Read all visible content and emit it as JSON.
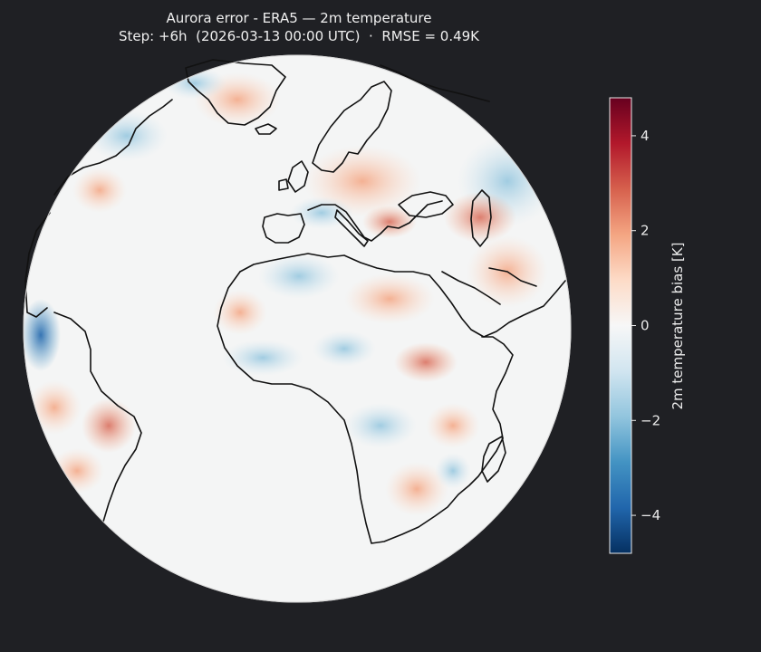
{
  "title": {
    "line1": "Aurora error - ERA5 — 2m temperature",
    "line2": "Step: +6h  (2026-03-13 00:00 UTC)  ·  RMSE = 0.49K"
  },
  "colorbar": {
    "label": "2m temperature bias [K]",
    "range": [
      -4.8,
      4.8
    ],
    "ticks": [
      {
        "value": 4,
        "label": "4"
      },
      {
        "value": 2,
        "label": "2"
      },
      {
        "value": 0,
        "label": "0"
      },
      {
        "value": -2,
        "label": "−2"
      },
      {
        "value": -4,
        "label": "−4"
      }
    ],
    "colormap": [
      "#053061",
      "#2166ac",
      "#4393c3",
      "#92c5de",
      "#d1e5f0",
      "#f7f7f7",
      "#fddbc7",
      "#f4a582",
      "#d6604d",
      "#b2182b",
      "#67001f"
    ]
  },
  "colors": {
    "background": "#1f2024",
    "ocean": "#f4f5f5",
    "coastline": "#111111"
  }
}
